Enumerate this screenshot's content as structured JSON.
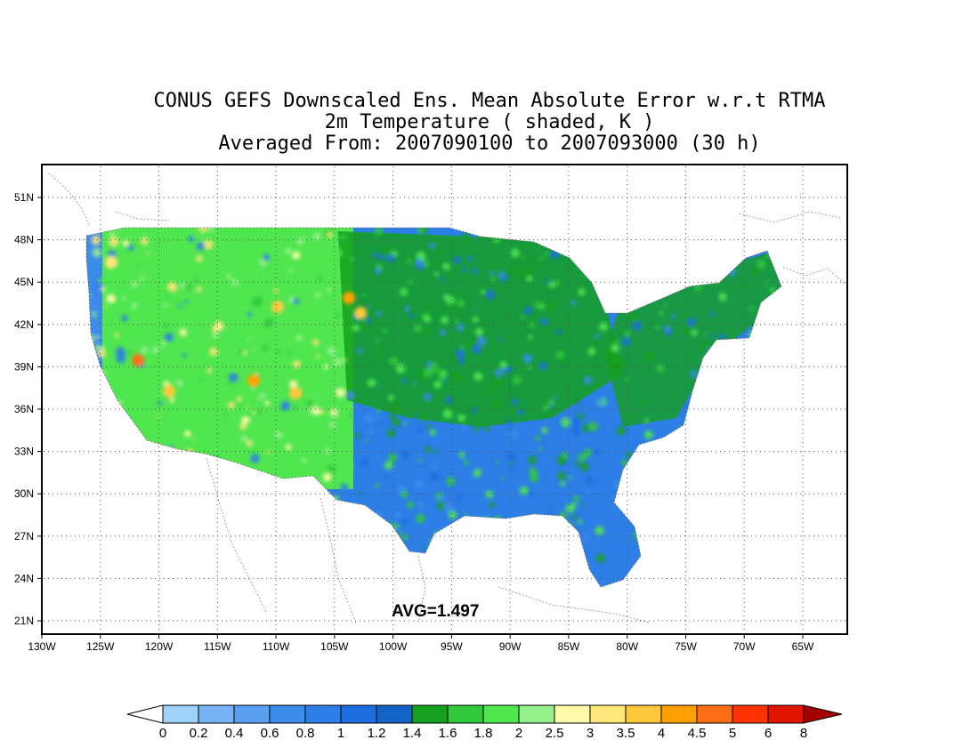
{
  "title": {
    "line1": "CONUS GEFS Downscaled Ens. Mean Absolute Error w.r.t RTMA",
    "line2": "2m Temperature ( shaded, K )",
    "line3": "Averaged From: 2007090100 to 2007093000 (30 h)"
  },
  "map": {
    "lon_labels": [
      "130W",
      "125W",
      "120W",
      "115W",
      "110W",
      "105W",
      "100W",
      "95W",
      "90W",
      "85W",
      "80W",
      "75W",
      "70W",
      "65W"
    ],
    "lat_labels": [
      "51N",
      "48N",
      "45N",
      "42N",
      "39N",
      "36N",
      "33N",
      "30N",
      "27N",
      "24N",
      "21N"
    ],
    "lon_range": [
      -130,
      -62
    ],
    "lat_range": [
      20,
      52
    ],
    "grid": true,
    "avg_label": "AVG=1.497"
  },
  "colorbar": {
    "labels": [
      "0",
      "0.2",
      "0.4",
      "0.6",
      "0.8",
      "1",
      "1.2",
      "1.4",
      "1.6",
      "1.8",
      "2",
      "2.5",
      "3",
      "3.5",
      "4",
      "4.5",
      "5",
      "6",
      "8"
    ],
    "colors": [
      "#ffffff",
      "#9fd2fa",
      "#78b4f5",
      "#5aa0f0",
      "#3c8ceb",
      "#2d7ee6",
      "#1e6ee1",
      "#1464c8",
      "#14a01e",
      "#32c83c",
      "#50e650",
      "#96f08c",
      "#fffaaa",
      "#ffe678",
      "#ffc83c",
      "#ffa000",
      "#ff6e14",
      "#ff3200",
      "#e11400",
      "#a50000"
    ]
  }
}
